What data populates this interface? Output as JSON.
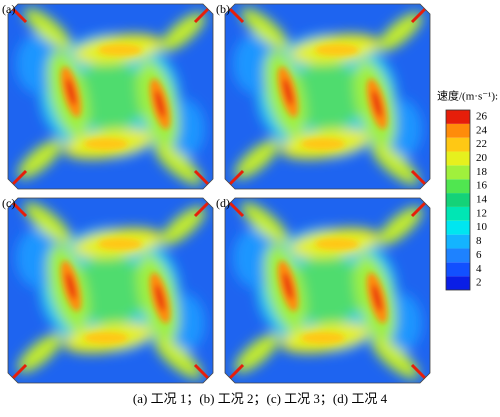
{
  "panels": [
    {
      "label": "(a)"
    },
    {
      "label": "(b)"
    },
    {
      "label": "(c)"
    },
    {
      "label": "(d)"
    }
  ],
  "colorbar": {
    "title": "速度/(m·s⁻¹):",
    "ticks": [
      2,
      4,
      6,
      8,
      10,
      12,
      14,
      16,
      18,
      20,
      22,
      24,
      26
    ],
    "colors": [
      "#0a1ee6",
      "#1250ff",
      "#1e82ff",
      "#14b4ff",
      "#00e6f0",
      "#00e6b4",
      "#14d278",
      "#50e650",
      "#a0f03c",
      "#e6f01e",
      "#ffc814",
      "#ff8c0a",
      "#e61e0a"
    ]
  },
  "caption": "(a) 工况 1；(b) 工况 2；(c) 工况 3；(d) 工况 4"
}
